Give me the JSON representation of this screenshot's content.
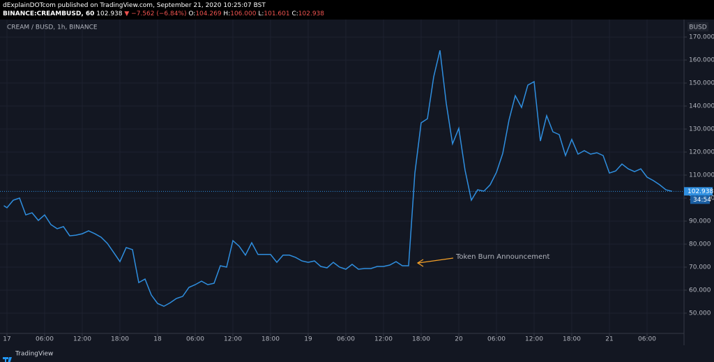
{
  "header": {
    "line1": "dExplainDOTcom published on TradingView.com, September 21, 2020 10:25:07 BST",
    "symbol": "BINANCE:CREAMBUSD, 60",
    "last": "102.938",
    "change": "▼ −7.562 (−6.84%)",
    "ohlc": [
      {
        "label": "O:",
        "value": "104.269"
      },
      {
        "label": "H:",
        "value": "106.000"
      },
      {
        "label": "L:",
        "value": "101.601"
      },
      {
        "label": "C:",
        "value": "102.938"
      }
    ]
  },
  "footer": "TradingView",
  "chart_data": {
    "type": "line",
    "title": "CREAM / BUSD, 1h, BINANCE",
    "y_unit": "BUSD",
    "color": "#2f8fe0",
    "x": [
      -0.5,
      0,
      1,
      2,
      3,
      4,
      5,
      6,
      7,
      8,
      9,
      10,
      11,
      12,
      13,
      14,
      15,
      16,
      17,
      18,
      19,
      20,
      21,
      22,
      23,
      24,
      25,
      26,
      27,
      28,
      29,
      30,
      31,
      32,
      33,
      34,
      35,
      36,
      37,
      38,
      39,
      40,
      41,
      42,
      43,
      44,
      45,
      46,
      47,
      48,
      49,
      50,
      51,
      52,
      53,
      54,
      55,
      56,
      57,
      58,
      59,
      60,
      61,
      62,
      63,
      64,
      65,
      66,
      67,
      68,
      69,
      70,
      71,
      72,
      73,
      74,
      75,
      76,
      77,
      78,
      79,
      80,
      81,
      82,
      83,
      84,
      85,
      86,
      87,
      88,
      89,
      90,
      91,
      92,
      93,
      94,
      95,
      96,
      97,
      98,
      99,
      100,
      101,
      102,
      103,
      104,
      105,
      106
    ],
    "values": [
      96.7,
      95.8,
      99.1,
      100.0,
      92.7,
      93.6,
      90.3,
      92.7,
      88.5,
      86.7,
      87.6,
      83.6,
      83.9,
      84.5,
      85.8,
      84.5,
      83.0,
      80.3,
      76.4,
      72.4,
      78.5,
      77.6,
      63.3,
      64.8,
      57.9,
      54.2,
      53.0,
      54.5,
      56.4,
      57.3,
      61.2,
      62.4,
      63.9,
      62.4,
      63.0,
      70.6,
      70.0,
      81.5,
      79.1,
      75.2,
      80.6,
      75.5,
      75.5,
      75.5,
      72.1,
      75.2,
      75.2,
      74.2,
      72.7,
      72.1,
      72.7,
      70.3,
      69.7,
      72.1,
      70.0,
      69.1,
      71.2,
      69.1,
      69.4,
      69.4,
      70.3,
      70.3,
      70.9,
      72.4,
      70.6,
      70.6,
      110.9,
      132.7,
      134.5,
      152.7,
      164.2,
      141.2,
      123.6,
      130.3,
      112.1,
      99.1,
      103.6,
      103.0,
      105.8,
      111.2,
      119.4,
      133.9,
      144.5,
      139.4,
      149.1,
      150.6,
      124.8,
      135.8,
      128.8,
      127.6,
      118.5,
      125.5,
      119.1,
      120.6,
      119.1,
      119.7,
      118.5,
      110.9,
      111.8,
      114.8,
      112.7,
      111.5,
      112.7,
      109.1,
      107.6,
      105.8,
      103.6,
      102.938
    ],
    "xlim": [
      -1.11,
      107.89
    ],
    "ylim": [
      41.2,
      177.6
    ],
    "xticks": [
      {
        "value": 0,
        "label": "17"
      },
      {
        "value": 6,
        "label": "06:00"
      },
      {
        "value": 12,
        "label": "12:00"
      },
      {
        "value": 18,
        "label": "18:00"
      },
      {
        "value": 24,
        "label": "18"
      },
      {
        "value": 30,
        "label": "06:00"
      },
      {
        "value": 36,
        "label": "12:00"
      },
      {
        "value": 42,
        "label": "18:00"
      },
      {
        "value": 48,
        "label": "19"
      },
      {
        "value": 54,
        "label": "06:00"
      },
      {
        "value": 60,
        "label": "12:00"
      },
      {
        "value": 66,
        "label": "18:00"
      },
      {
        "value": 72,
        "label": "20"
      },
      {
        "value": 78,
        "label": "06:00"
      },
      {
        "value": 84,
        "label": "12:00"
      },
      {
        "value": 90,
        "label": "18:00"
      },
      {
        "value": 96,
        "label": "21"
      },
      {
        "value": 102,
        "label": "06:00"
      }
    ],
    "yticks": [
      {
        "value": 50,
        "label": "50.000"
      },
      {
        "value": 60,
        "label": "60.000"
      },
      {
        "value": 70,
        "label": "70.000"
      },
      {
        "value": 80,
        "label": "80.000"
      },
      {
        "value": 90,
        "label": "90.000"
      },
      {
        "value": 100,
        "label": "100.000"
      },
      {
        "value": 110,
        "label": "110.000"
      },
      {
        "value": 120,
        "label": "120.000"
      },
      {
        "value": 130,
        "label": "130.000"
      },
      {
        "value": 140,
        "label": "140.000"
      },
      {
        "value": 150,
        "label": "150.000"
      },
      {
        "value": 160,
        "label": "160.000"
      },
      {
        "value": 170,
        "label": "170.000"
      }
    ],
    "grid": true,
    "last_price": 102.938,
    "countdown": "34:54",
    "annotation": "Token Burn Announcement",
    "annotation_color": "#f7a229"
  }
}
